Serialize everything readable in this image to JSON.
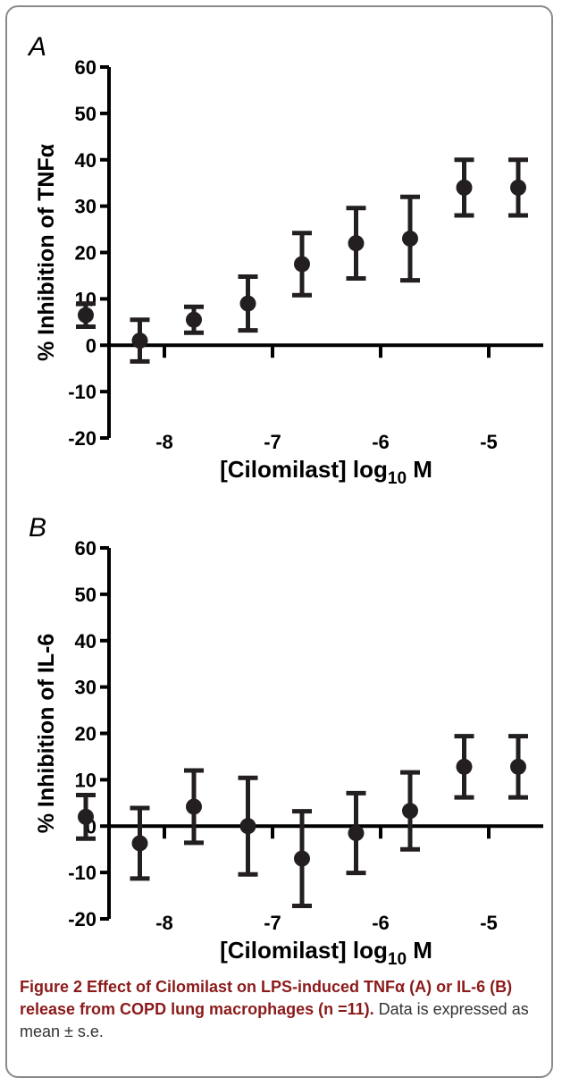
{
  "figure": {
    "caption_lead": "Figure 2 Effect of Cilomilast on LPS-induced TNFα (A) or IL-6 (B) release from COPD lung macrophages (n =11).",
    "caption_rest": " Data is expressed as mean ± s.e."
  },
  "chart_data": [
    {
      "type": "scatter",
      "panel_label": "A",
      "ylabel": "% Inhibition of  TNFα",
      "xlabel_main": "[Cilomilast] log",
      "xlabel_sub": "10",
      "xlabel_tail": " M",
      "ylim": [
        -20,
        60
      ],
      "yticks": [
        -20,
        -10,
        0,
        10,
        20,
        30,
        40,
        50,
        60
      ],
      "xticks": [
        -8,
        -7,
        -6,
        -5
      ],
      "xlim": [
        -9,
        -5
      ],
      "series": [
        {
          "x": [
            -9,
            -8.5,
            -8,
            -7.5,
            -7,
            -6.5,
            -6,
            -5.5,
            -5
          ],
          "y": [
            6.5,
            1,
            5.5,
            9,
            17.5,
            22,
            23,
            34,
            34
          ],
          "err": [
            2.5,
            4.5,
            2.8,
            5.8,
            6.7,
            7.6,
            9.0,
            6.0,
            6.0
          ]
        }
      ]
    },
    {
      "type": "scatter",
      "panel_label": "B",
      "ylabel": "% Inhibition of  IL-6",
      "xlabel_main": "[Cilomilast] log",
      "xlabel_sub": "10",
      "xlabel_tail": " M",
      "ylim": [
        -20,
        60
      ],
      "yticks": [
        -20,
        -10,
        0,
        10,
        20,
        30,
        40,
        50,
        60
      ],
      "xticks": [
        -8,
        -7,
        -6,
        -5
      ],
      "xlim": [
        -9,
        -5
      ],
      "series": [
        {
          "x": [
            -9,
            -8.5,
            -8,
            -7.5,
            -7,
            -6.5,
            -6,
            -5.5,
            -5
          ],
          "y": [
            2,
            -3.7,
            4.2,
            0,
            -7,
            -1.5,
            3.3,
            12.8,
            12.8
          ],
          "err": [
            4.7,
            7.6,
            7.8,
            10.4,
            10.2,
            8.6,
            8.3,
            6.6,
            6.6
          ]
        }
      ]
    }
  ]
}
